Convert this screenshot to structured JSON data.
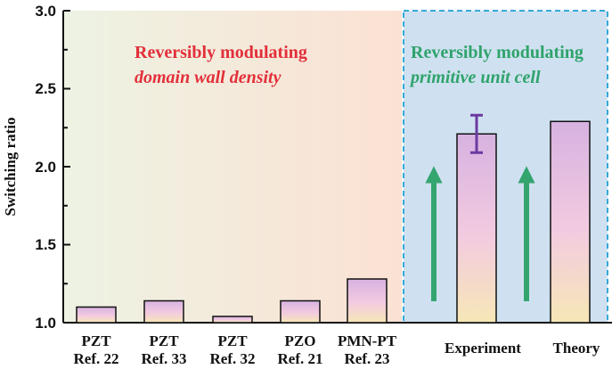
{
  "chart_data": {
    "type": "bar",
    "ylabel": "Switching ratio",
    "xlabel": "",
    "ylim": [
      1.0,
      3.0
    ],
    "yticks": [
      1.0,
      1.5,
      2.0,
      2.5,
      3.0
    ],
    "ytick_labels": [
      "1.0",
      "1.5",
      "2.0",
      "2.5",
      "3.0"
    ],
    "categories": [
      {
        "line1": "PZT",
        "line2": "Ref. 22"
      },
      {
        "line1": "PZT",
        "line2": "Ref. 33"
      },
      {
        "line1": "PZT",
        "line2": "Ref. 32"
      },
      {
        "line1": "PZO",
        "line2": "Ref. 21"
      },
      {
        "line1": "PMN-PT",
        "line2": "Ref. 23"
      },
      {
        "line1": "Experiment",
        "line2": ""
      },
      {
        "line1": "Theory",
        "line2": ""
      }
    ],
    "values": [
      1.1,
      1.14,
      1.04,
      1.14,
      1.28,
      2.21,
      2.29
    ],
    "error_bar": {
      "category_index": 5,
      "low": 2.09,
      "high": 2.33
    },
    "annotations": {
      "left_line1": "Reversibly modulating",
      "left_line2": "domain wall density",
      "right_line1": "Reversibly modulating",
      "right_line2": "primitive unit cell"
    },
    "colors": {
      "left_region_start": "#edf3e3",
      "left_region_end": "#fbe1d3",
      "right_region": "#cfe1f1",
      "right_region_border": "#36a9d8",
      "annotation_red": "#e2303a",
      "annotation_green": "#2fa36b",
      "arrow": "#34a56f",
      "error_bar": "#6b3aa0",
      "bar_top": "#d7b2e0",
      "bar_mid": "#f3cbe0",
      "bar_bottom": "#f6e7b6"
    }
  }
}
